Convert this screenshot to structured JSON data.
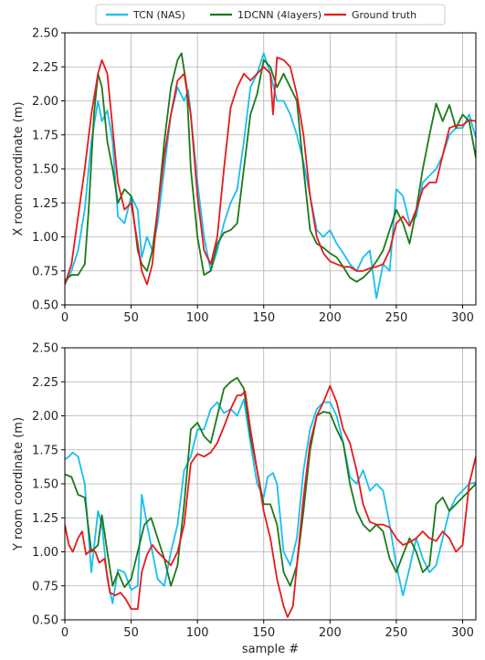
{
  "chart_data": [
    {
      "type": "line",
      "title": "",
      "xlabel": "",
      "ylabel": "X room coordinate (m)",
      "xlim": [
        0,
        310
      ],
      "ylim": [
        0.5,
        2.5
      ],
      "xticks": [
        0,
        50,
        100,
        150,
        200,
        250,
        300
      ],
      "yticks": [
        0.5,
        0.75,
        1.0,
        1.25,
        1.5,
        1.75,
        2.0,
        2.25,
        2.5
      ],
      "grid": true,
      "legend_placement": "top-center",
      "series": [
        {
          "name": "TCN (NAS)",
          "color": "#17bfef",
          "x": [
            0,
            5,
            10,
            15,
            20,
            25,
            28,
            32,
            36,
            40,
            45,
            50,
            55,
            58,
            62,
            66,
            70,
            75,
            80,
            85,
            90,
            93,
            96,
            100,
            105,
            110,
            115,
            120,
            125,
            130,
            135,
            140,
            145,
            150,
            155,
            160,
            165,
            170,
            175,
            180,
            185,
            190,
            195,
            200,
            205,
            210,
            215,
            220,
            225,
            230,
            235,
            240,
            245,
            250,
            255,
            260,
            265,
            270,
            275,
            280,
            285,
            290,
            295,
            300,
            305,
            310
          ],
          "y": [
            0.65,
            0.75,
            0.9,
            1.2,
            1.7,
            2.0,
            1.85,
            1.93,
            1.7,
            1.15,
            1.1,
            1.3,
            1.2,
            0.85,
            1.0,
            0.9,
            1.1,
            1.5,
            1.9,
            2.1,
            2.0,
            2.08,
            1.8,
            1.4,
            1.0,
            0.75,
            0.9,
            1.1,
            1.25,
            1.35,
            1.7,
            2.1,
            2.2,
            2.35,
            2.2,
            2.0,
            2.0,
            1.9,
            1.75,
            1.55,
            1.3,
            1.05,
            1.0,
            1.05,
            0.95,
            0.88,
            0.8,
            0.75,
            0.85,
            0.9,
            0.55,
            0.8,
            0.75,
            1.35,
            1.3,
            1.1,
            1.15,
            1.4,
            1.45,
            1.5,
            1.6,
            1.75,
            1.8,
            1.8,
            1.9,
            1.73
          ]
        },
        {
          "name": "1DCNN (4layers)",
          "color": "#1a7a1a",
          "x": [
            0,
            5,
            10,
            15,
            18,
            22,
            25,
            28,
            32,
            36,
            40,
            45,
            50,
            55,
            58,
            62,
            66,
            70,
            75,
            80,
            85,
            88,
            92,
            95,
            100,
            105,
            110,
            115,
            120,
            125,
            130,
            135,
            140,
            145,
            150,
            155,
            160,
            165,
            170,
            175,
            180,
            185,
            190,
            195,
            200,
            205,
            210,
            215,
            220,
            225,
            230,
            235,
            240,
            245,
            250,
            255,
            260,
            265,
            270,
            275,
            280,
            285,
            290,
            295,
            300,
            305,
            310
          ],
          "y": [
            0.68,
            0.72,
            0.72,
            0.8,
            1.2,
            1.9,
            2.2,
            2.1,
            1.7,
            1.5,
            1.25,
            1.35,
            1.3,
            0.9,
            0.8,
            0.75,
            0.9,
            1.2,
            1.7,
            2.1,
            2.3,
            2.35,
            2.1,
            1.5,
            1.0,
            0.72,
            0.75,
            0.95,
            1.03,
            1.05,
            1.1,
            1.5,
            1.9,
            2.05,
            2.3,
            2.25,
            2.1,
            2.2,
            2.1,
            2.0,
            1.5,
            1.05,
            0.95,
            0.92,
            0.88,
            0.85,
            0.78,
            0.7,
            0.67,
            0.7,
            0.75,
            0.82,
            0.9,
            1.05,
            1.2,
            1.1,
            0.95,
            1.2,
            1.5,
            1.75,
            1.98,
            1.85,
            1.97,
            1.8,
            1.9,
            1.85,
            1.58
          ]
        },
        {
          "name": "Ground truth",
          "color": "#e8191c",
          "x": [
            0,
            5,
            10,
            15,
            20,
            25,
            28,
            32,
            36,
            40,
            45,
            50,
            55,
            58,
            62,
            66,
            70,
            75,
            80,
            85,
            90,
            95,
            100,
            105,
            110,
            115,
            120,
            125,
            130,
            135,
            140,
            145,
            150,
            155,
            157,
            160,
            165,
            170,
            175,
            180,
            185,
            190,
            195,
            200,
            205,
            210,
            215,
            220,
            225,
            230,
            235,
            240,
            245,
            250,
            255,
            260,
            265,
            270,
            275,
            280,
            285,
            290,
            295,
            300,
            305,
            310
          ],
          "y": [
            0.65,
            0.8,
            1.15,
            1.5,
            1.9,
            2.2,
            2.3,
            2.2,
            1.8,
            1.4,
            1.2,
            1.25,
            0.95,
            0.75,
            0.65,
            0.8,
            1.2,
            1.6,
            1.9,
            2.15,
            2.2,
            1.9,
            1.3,
            0.9,
            0.8,
            1.0,
            1.5,
            1.95,
            2.1,
            2.2,
            2.15,
            2.2,
            2.25,
            2.2,
            1.9,
            2.32,
            2.3,
            2.25,
            2.05,
            1.75,
            1.3,
            1.0,
            0.88,
            0.82,
            0.8,
            0.78,
            0.78,
            0.75,
            0.75,
            0.77,
            0.78,
            0.8,
            0.9,
            1.1,
            1.15,
            1.08,
            1.2,
            1.35,
            1.4,
            1.4,
            1.6,
            1.8,
            1.82,
            1.82,
            1.86,
            1.85
          ]
        }
      ]
    },
    {
      "type": "line",
      "title": "",
      "xlabel": "sample #",
      "ylabel": "Y room coordinate (m)",
      "xlim": [
        0,
        310
      ],
      "ylim": [
        0.5,
        2.5
      ],
      "xticks": [
        0,
        50,
        100,
        150,
        200,
        250,
        300
      ],
      "yticks": [
        0.5,
        0.75,
        1.0,
        1.25,
        1.5,
        1.75,
        2.0,
        2.25,
        2.5
      ],
      "grid": true,
      "series": [
        {
          "name": "TCN (NAS)",
          "color": "#17bfef",
          "x": [
            0,
            3,
            6,
            10,
            15,
            20,
            25,
            28,
            32,
            36,
            40,
            45,
            50,
            55,
            58,
            62,
            66,
            70,
            75,
            80,
            85,
            90,
            95,
            100,
            105,
            110,
            115,
            120,
            125,
            130,
            135,
            140,
            145,
            150,
            153,
            157,
            160,
            165,
            170,
            175,
            180,
            185,
            190,
            195,
            200,
            205,
            210,
            215,
            220,
            225,
            230,
            235,
            240,
            245,
            250,
            255,
            260,
            265,
            270,
            275,
            280,
            285,
            290,
            295,
            300,
            305,
            310
          ],
          "y": [
            1.68,
            1.7,
            1.73,
            1.7,
            1.5,
            0.85,
            1.3,
            1.2,
            0.8,
            0.62,
            0.87,
            0.85,
            0.72,
            0.75,
            1.42,
            1.2,
            1.0,
            0.8,
            0.75,
            1.0,
            1.2,
            1.6,
            1.7,
            1.9,
            1.9,
            2.05,
            2.1,
            2.02,
            2.05,
            2.0,
            2.12,
            1.8,
            1.5,
            1.4,
            1.55,
            1.58,
            1.5,
            1.0,
            0.9,
            1.1,
            1.6,
            1.9,
            2.05,
            2.1,
            2.1,
            2.0,
            1.8,
            1.55,
            1.5,
            1.6,
            1.45,
            1.5,
            1.45,
            1.2,
            0.9,
            0.68,
            0.88,
            1.1,
            0.95,
            0.85,
            0.9,
            1.1,
            1.3,
            1.4,
            1.45,
            1.5,
            1.51
          ]
        },
        {
          "name": "1DCNN (4layers)",
          "color": "#1a7a1a",
          "x": [
            0,
            5,
            10,
            15,
            20,
            25,
            28,
            32,
            36,
            40,
            45,
            50,
            55,
            60,
            65,
            70,
            75,
            80,
            85,
            90,
            95,
            100,
            105,
            110,
            115,
            120,
            125,
            130,
            135,
            140,
            145,
            150,
            155,
            160,
            165,
            170,
            175,
            180,
            185,
            190,
            195,
            200,
            205,
            210,
            215,
            220,
            225,
            230,
            235,
            240,
            245,
            250,
            255,
            260,
            265,
            270,
            275,
            280,
            285,
            290,
            295,
            300,
            305,
            310
          ],
          "y": [
            1.57,
            1.55,
            1.42,
            1.4,
            1.0,
            1.05,
            1.27,
            1.0,
            0.75,
            0.85,
            0.74,
            0.8,
            1.0,
            1.2,
            1.25,
            1.1,
            0.95,
            0.75,
            0.9,
            1.35,
            1.9,
            1.95,
            1.85,
            1.8,
            2.0,
            2.2,
            2.25,
            2.28,
            2.2,
            1.85,
            1.6,
            1.35,
            1.35,
            1.2,
            0.85,
            0.75,
            0.9,
            1.3,
            1.75,
            2.0,
            2.03,
            2.02,
            1.9,
            1.8,
            1.5,
            1.3,
            1.2,
            1.15,
            1.2,
            1.15,
            0.95,
            0.85,
            0.98,
            1.1,
            1.0,
            0.85,
            0.9,
            1.35,
            1.4,
            1.3,
            1.35,
            1.4,
            1.45,
            1.5
          ]
        },
        {
          "name": "Ground truth",
          "color": "#e8191c",
          "x": [
            0,
            3,
            6,
            10,
            13,
            16,
            20,
            23,
            26,
            30,
            34,
            38,
            42,
            46,
            50,
            55,
            58,
            62,
            66,
            70,
            75,
            80,
            85,
            90,
            95,
            100,
            105,
            110,
            115,
            120,
            125,
            130,
            133,
            136,
            140,
            145,
            150,
            155,
            160,
            165,
            168,
            172,
            176,
            180,
            185,
            190,
            195,
            200,
            205,
            210,
            215,
            220,
            225,
            230,
            235,
            240,
            245,
            250,
            255,
            260,
            265,
            270,
            275,
            280,
            285,
            290,
            295,
            300,
            305,
            310
          ],
          "y": [
            1.2,
            1.05,
            1.0,
            1.1,
            1.15,
            0.98,
            1.02,
            1.0,
            0.92,
            0.95,
            0.7,
            0.68,
            0.7,
            0.65,
            0.58,
            0.58,
            0.85,
            0.98,
            1.05,
            1.0,
            0.95,
            0.9,
            1.0,
            1.2,
            1.65,
            1.72,
            1.7,
            1.73,
            1.8,
            1.92,
            2.05,
            2.15,
            2.15,
            2.18,
            1.9,
            1.6,
            1.3,
            1.1,
            0.8,
            0.6,
            0.52,
            0.6,
            1.0,
            1.4,
            1.8,
            2.0,
            2.1,
            2.22,
            2.1,
            1.9,
            1.8,
            1.6,
            1.35,
            1.22,
            1.2,
            1.2,
            1.18,
            1.1,
            1.05,
            1.07,
            1.1,
            1.15,
            1.1,
            1.08,
            1.15,
            1.1,
            1.0,
            1.05,
            1.5,
            1.7
          ]
        }
      ]
    }
  ]
}
